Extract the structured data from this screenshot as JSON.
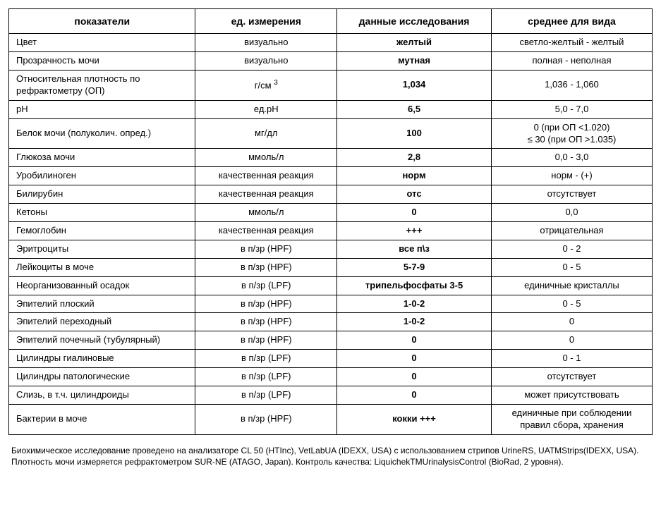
{
  "table": {
    "headers": [
      "показатели",
      "ед. измерения",
      "данные исследования",
      "среднее для вида"
    ],
    "rows": [
      {
        "indicator": "Цвет",
        "unit": "визуально",
        "value": "желтый",
        "ref": "светло-желтый - желтый"
      },
      {
        "indicator": "Прозрачность мочи",
        "unit": "визуально",
        "value": "мутная",
        "ref": "полная - неполная"
      },
      {
        "indicator": "Относительная плотность по рефрактометру (ОП)",
        "unit": "г/см ³",
        "value": "1,034",
        "ref": "1,036 - 1,060"
      },
      {
        "indicator": "pH",
        "unit": "ед.pH",
        "value": "6,5",
        "ref": "5,0 - 7,0"
      },
      {
        "indicator": "Белок мочи (полуколич. опред.)",
        "unit": "мг/дл",
        "value": "100",
        "ref": "0 (при ОП <1.020)\n≤ 30 (при ОП >1.035)"
      },
      {
        "indicator": "Глюкоза мочи",
        "unit": "ммоль/л",
        "value": "2,8",
        "ref": "0,0 - 3,0"
      },
      {
        "indicator": "Уробилиноген",
        "unit": "качественная реакция",
        "value": "норм",
        "ref": "норм - (+)"
      },
      {
        "indicator": "Билирубин",
        "unit": "качественная реакция",
        "value": "отс",
        "ref": "отсутствует"
      },
      {
        "indicator": "Кетоны",
        "unit": "ммоль/л",
        "value": "0",
        "ref": "0,0"
      },
      {
        "indicator": "Гемоглобин",
        "unit": "качественная реакция",
        "value": "+++",
        "ref": "отрицательная"
      },
      {
        "indicator": "Эритроциты",
        "unit": "в п/зр (HPF)",
        "value": "все п\\з",
        "ref": "0 - 2"
      },
      {
        "indicator": "Лейкоциты в моче",
        "unit": "в п/зр (HPF)",
        "value": "5-7-9",
        "ref": "0 - 5"
      },
      {
        "indicator": "Неорганизованный осадок",
        "unit": "в п/зр (LPF)",
        "value": "трипельфосфаты 3-5",
        "ref": "единичные кристаллы"
      },
      {
        "indicator": "Эпителий плоский",
        "unit": "в п/зр (HPF)",
        "value": "1-0-2",
        "ref": "0 - 5"
      },
      {
        "indicator": "Эпителий переходный",
        "unit": "в п/зр (HPF)",
        "value": "1-0-2",
        "ref": "0"
      },
      {
        "indicator": "Эпителий почечный (тубулярный)",
        "unit": "в п/зр (HPF)",
        "value": "0",
        "ref": "0"
      },
      {
        "indicator": "Цилиндры гиалиновые",
        "unit": "в п/зр (LPF)",
        "value": "0",
        "ref": "0 - 1"
      },
      {
        "indicator": "Цилиндры патологические",
        "unit": "в п/зр (LPF)",
        "value": "0",
        "ref": "отсутствует"
      },
      {
        "indicator": "Слизь, в т.ч. цилиндроиды",
        "unit": "в п/зр (LPF)",
        "value": "0",
        "ref": "может присутствовать"
      },
      {
        "indicator": "Бактерии в моче",
        "unit": "в п/зр (HPF)",
        "value": "кокки +++",
        "ref": "единичные при соблюдении правил сбора, хранения"
      }
    ]
  },
  "footnote": "Биохимическое исследование проведено на анализаторе CL 50 (HTInc), VetLabUA (IDEXX, USA)  с использованием стрипов UrineRS, UATMStrips(IDEXX, USA). Плотность мочи измеряется рефрактометром  SUR-NE (ATAGO, Japan). Контроль качества: LiquichekTMUrinalysisControl (BioRad, 2 уровня).",
  "styling": {
    "font_family": "Arial, sans-serif",
    "header_fontsize": 14,
    "body_fontsize": 13,
    "footnote_fontsize": 12,
    "border_color": "#000000",
    "background_color": "#ffffff",
    "text_color": "#000000",
    "column_widths_pct": [
      29,
      22,
      24,
      25
    ],
    "header_weight": "bold",
    "value_weight": "bold"
  }
}
